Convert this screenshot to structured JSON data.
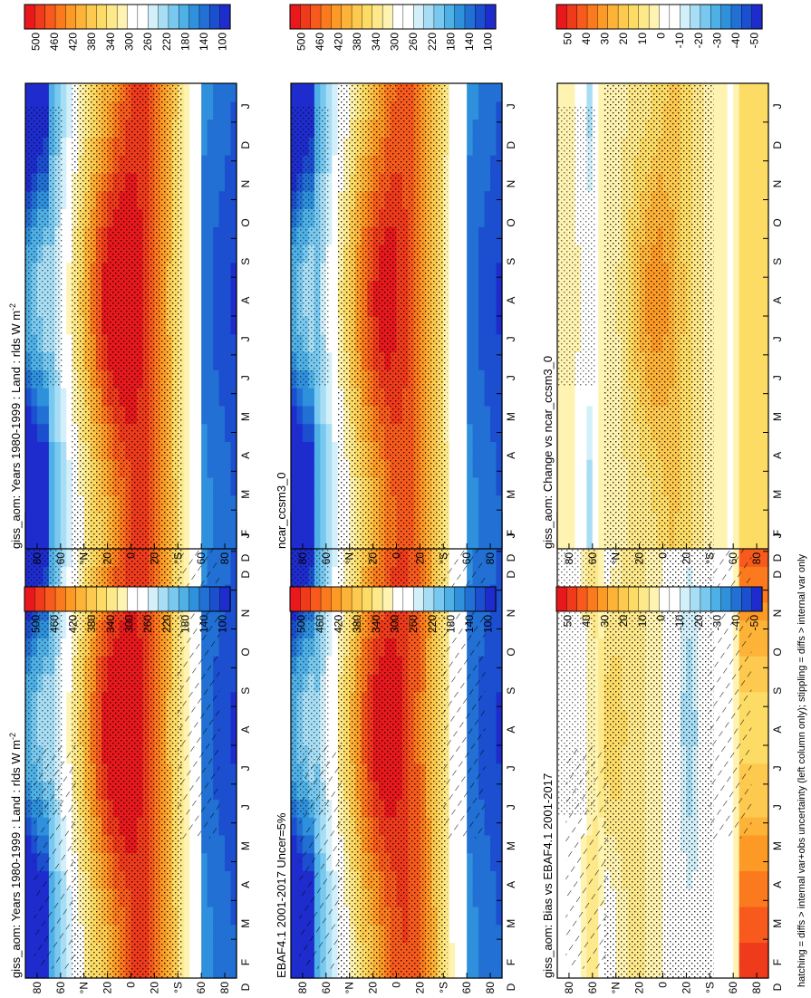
{
  "footnote": "hatching = diffs > internal var+obs uncertainty (left column only); stippling = diffs > internal var only",
  "palettes": {
    "abs": [
      "#e8181c",
      "#f03a1c",
      "#f75a1c",
      "#fb7a1e",
      "#fd9a26",
      "#fdb238",
      "#fdc94e",
      "#fddc66",
      "#fde88a",
      "#fef3b0",
      "#ffffff",
      "#ffffff",
      "#d3f0fa",
      "#a8def5",
      "#78c8ef",
      "#4fb0e6",
      "#2f90dc",
      "#2270d4",
      "#1c4ed0",
      "#1e2ccd"
    ],
    "diff": [
      "#e8181c",
      "#f03a1c",
      "#f75a1c",
      "#fb7a1e",
      "#fd9a26",
      "#fdb238",
      "#fdc94e",
      "#fddc66",
      "#fde88a",
      "#fef3b0",
      "#ffffff",
      "#ffffff",
      "#d3f0fa",
      "#a8def5",
      "#78c8ef",
      "#4fb0e6",
      "#2f90dc",
      "#2270d4",
      "#1c4ed0",
      "#1e2ccd"
    ]
  },
  "chart_data": [
    {
      "id": "p1",
      "type": "heatmap",
      "title": "giss_aom: Years 1980-1999 : Land : rlds W m",
      "title_sup": "-2",
      "months": [
        "J",
        "F",
        "M",
        "A",
        "M",
        "J",
        "J",
        "A",
        "S",
        "O",
        "N",
        "D",
        "J"
      ],
      "month_axis_end": "D",
      "lat_ticks": [
        "80",
        "60",
        "°N",
        "20",
        "0",
        "20",
        "°S",
        "60",
        "80"
      ],
      "palette": "abs",
      "colorbar": [
        "500",
        "460",
        "420",
        "380",
        "340",
        "300",
        "260",
        "220",
        "180",
        "140",
        "100"
      ],
      "clim": [
        80,
        520
      ],
      "hatch": true,
      "field": {
        "type": "abs",
        "base_tropics": 420,
        "peak_nh_summer": 470
      }
    },
    {
      "id": "p2",
      "type": "heatmap",
      "title": "giss_aom: Years 1980-1999 : Land : rlds W m",
      "title_sup": "-2",
      "months": [
        "J",
        "F",
        "M",
        "A",
        "M",
        "J",
        "J",
        "A",
        "S",
        "O",
        "N",
        "D",
        "J"
      ],
      "month_axis_end": "D",
      "lat_ticks": [
        "80",
        "60",
        "°N",
        "20",
        "0",
        "20",
        "°S",
        "60",
        "80"
      ],
      "palette": "abs",
      "colorbar": [
        "500",
        "460",
        "420",
        "380",
        "340",
        "300",
        "260",
        "220",
        "180",
        "140",
        "100"
      ],
      "clim": [
        80,
        520
      ],
      "hatch": false,
      "field": {
        "type": "abs",
        "base_tropics": 420,
        "peak_nh_summer": 470
      }
    },
    {
      "id": "p3",
      "type": "heatmap",
      "title": "EBAF4.1 2001-2017 Uncer=5%",
      "title_sup": "",
      "months": [
        "J",
        "F",
        "M",
        "A",
        "M",
        "J",
        "J",
        "A",
        "S",
        "O",
        "N",
        "D",
        "J"
      ],
      "month_axis_end": "D",
      "lat_ticks": [
        "80",
        "60",
        "°N",
        "20",
        "0",
        "20",
        "°S",
        "60",
        "80"
      ],
      "palette": "abs",
      "colorbar": [
        "500",
        "460",
        "420",
        "380",
        "340",
        "300",
        "260",
        "220",
        "180",
        "140",
        "100"
      ],
      "clim": [
        80,
        520
      ],
      "hatch": true,
      "field": {
        "type": "abs",
        "base_tropics": 410,
        "peak_nh_summer": 450
      }
    },
    {
      "id": "p4",
      "type": "heatmap",
      "title": "ncar_ccsm3_0",
      "title_sup": "",
      "months": [
        "J",
        "F",
        "M",
        "A",
        "M",
        "J",
        "J",
        "A",
        "S",
        "O",
        "N",
        "D",
        "J"
      ],
      "month_axis_end": "D",
      "lat_ticks": [
        "80",
        "60",
        "°N",
        "20",
        "0",
        "20",
        "°S",
        "60",
        "80"
      ],
      "palette": "abs",
      "colorbar": [
        "500",
        "460",
        "420",
        "380",
        "340",
        "300",
        "260",
        "220",
        "180",
        "140",
        "100"
      ],
      "clim": [
        80,
        520
      ],
      "hatch": false,
      "field": {
        "type": "abs",
        "base_tropics": 400,
        "peak_nh_summer": 440
      }
    },
    {
      "id": "p5",
      "type": "heatmap",
      "title": "giss_aom: Bias vs EBAF4.1 2001-2017",
      "title_sup": "",
      "months": [
        "J",
        "F",
        "M",
        "A",
        "M",
        "J",
        "J",
        "A",
        "S",
        "O",
        "N",
        "D",
        "J"
      ],
      "month_axis_end": "D",
      "lat_ticks": [
        "80",
        "60",
        "°N",
        "20",
        "0",
        "20",
        "°S",
        "60",
        "80"
      ],
      "palette": "diff",
      "colorbar": [
        "50",
        "40",
        "30",
        "20",
        "10",
        "0",
        "-10",
        "-20",
        "-30",
        "-40",
        "-50"
      ],
      "clim": [
        -55,
        55
      ],
      "hatch": true,
      "field": {
        "type": "bias"
      }
    },
    {
      "id": "p6",
      "type": "heatmap",
      "title": "giss_aom: Change vs ncar_ccsm3_0",
      "title_sup": "",
      "months": [
        "J",
        "F",
        "M",
        "A",
        "M",
        "J",
        "J",
        "A",
        "S",
        "O",
        "N",
        "D",
        "J"
      ],
      "month_axis_end": "D",
      "lat_ticks": [
        "80",
        "60",
        "°N",
        "20",
        "0",
        "20",
        "°S",
        "60",
        "80"
      ],
      "palette": "diff",
      "colorbar": [
        "50",
        "40",
        "30",
        "20",
        "10",
        "0",
        "-10",
        "-20",
        "-30",
        "-40",
        "-50"
      ],
      "clim": [
        -55,
        55
      ],
      "hatch": false,
      "field": {
        "type": "change"
      }
    }
  ]
}
